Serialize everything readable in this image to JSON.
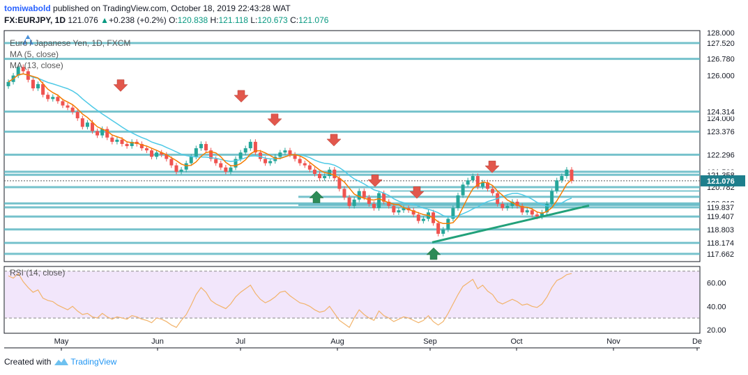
{
  "header": {
    "author": "tomiwabold",
    "published_text": "published on TradingView.com, October 18, 2019 22:43:28 WAT"
  },
  "ohlc": {
    "symbol": "FX:EURJPY, 1D",
    "last": "121.076",
    "change": "+0.238 (+0.2%)",
    "o_label": "O:",
    "o": "120.838",
    "h_label": "H:",
    "h": "121.118",
    "l_label": "L:",
    "l": "120.673",
    "c_label": "C:",
    "c": "121.076"
  },
  "footer": {
    "created_with": "Created with",
    "brand": "TradingView"
  },
  "colors": {
    "up": "#26a69a",
    "down": "#ef5350",
    "ma5": "#f57c00",
    "ma13": "#4dc9e6",
    "level": "#5fb8c4",
    "trend": "#22a17a",
    "rsi": "#f2b36b",
    "rsi_band": "#f2e6fb",
    "price_tag": "#1e7e8c"
  },
  "chart_data": {
    "type": "candlestick",
    "title": "Euro / Japanese Yen, 1D, FXCM",
    "indicators": [
      "MA (5, close)",
      "MA (13, close)"
    ],
    "x_ticks": [
      "May",
      "Jun",
      "Jul",
      "Aug",
      "Sep",
      "Oct",
      "Nov",
      "De"
    ],
    "y_ticks": [
      "128.000",
      "126.000",
      "124.000"
    ],
    "ylim": [
      117.3,
      128.1
    ],
    "last_price": "121.076",
    "levels": [
      "127.520",
      "126.780",
      "124.314",
      "123.376",
      "122.296",
      "121.502",
      "121.358",
      "120.782",
      "120.019",
      "119.837",
      "119.407",
      "118.803",
      "118.174",
      "117.662"
    ],
    "closes": [
      125.7,
      126.0,
      126.4,
      126.2,
      125.8,
      125.4,
      125.6,
      125.1,
      124.9,
      125.0,
      124.8,
      124.6,
      124.5,
      124.3,
      124.0,
      123.6,
      123.8,
      123.4,
      123.2,
      123.5,
      123.1,
      122.9,
      123.0,
      122.8,
      122.7,
      122.9,
      122.8,
      122.6,
      122.5,
      122.2,
      122.4,
      122.3,
      122.1,
      121.8,
      121.5,
      121.6,
      121.9,
      122.2,
      122.6,
      122.8,
      122.5,
      122.1,
      121.9,
      121.7,
      121.5,
      121.7,
      122.1,
      122.4,
      122.6,
      122.9,
      122.4,
      122.1,
      121.9,
      122.0,
      122.2,
      122.4,
      122.5,
      122.3,
      122.1,
      121.9,
      121.8,
      121.6,
      121.4,
      121.2,
      121.3,
      121.6,
      121.2,
      120.7,
      120.3,
      119.9,
      120.2,
      120.6,
      120.3,
      120.0,
      119.8,
      120.5,
      120.1,
      119.9,
      119.6,
      119.7,
      119.8,
      119.7,
      119.5,
      119.2,
      119.3,
      119.6,
      119.1,
      118.6,
      118.8,
      119.3,
      119.8,
      120.4,
      120.9,
      121.1,
      121.3,
      120.8,
      121.0,
      120.7,
      120.5,
      120.0,
      119.8,
      119.9,
      120.1,
      119.9,
      119.6,
      119.7,
      119.5,
      119.4,
      119.6,
      120.0,
      120.6,
      121.1,
      121.3,
      121.6,
      121.076
    ],
    "rsi": {
      "label": "RSI (14, close)",
      "ylim": [
        17,
        74
      ],
      "ticks": [
        "60.00",
        "40.00",
        "20.00"
      ],
      "bands": [
        70,
        30
      ],
      "values": [
        66,
        64,
        68,
        61,
        56,
        52,
        54,
        47,
        45,
        44,
        41,
        39,
        37,
        40,
        36,
        33,
        34,
        31,
        30,
        34,
        31,
        29,
        31,
        30,
        29,
        32,
        31,
        29,
        28,
        26,
        30,
        29,
        27,
        24,
        22,
        28,
        33,
        41,
        50,
        56,
        52,
        45,
        42,
        40,
        38,
        42,
        48,
        52,
        55,
        58,
        51,
        46,
        43,
        45,
        48,
        52,
        53,
        49,
        46,
        43,
        42,
        40,
        37,
        35,
        36,
        40,
        34,
        28,
        25,
        22,
        30,
        37,
        33,
        30,
        28,
        36,
        32,
        30,
        27,
        29,
        31,
        30,
        28,
        26,
        28,
        32,
        27,
        24,
        27,
        34,
        42,
        50,
        57,
        60,
        63,
        55,
        58,
        53,
        50,
        44,
        42,
        44,
        46,
        44,
        41,
        42,
        40,
        39,
        42,
        48,
        56,
        62,
        64,
        67,
        68
      ]
    }
  }
}
